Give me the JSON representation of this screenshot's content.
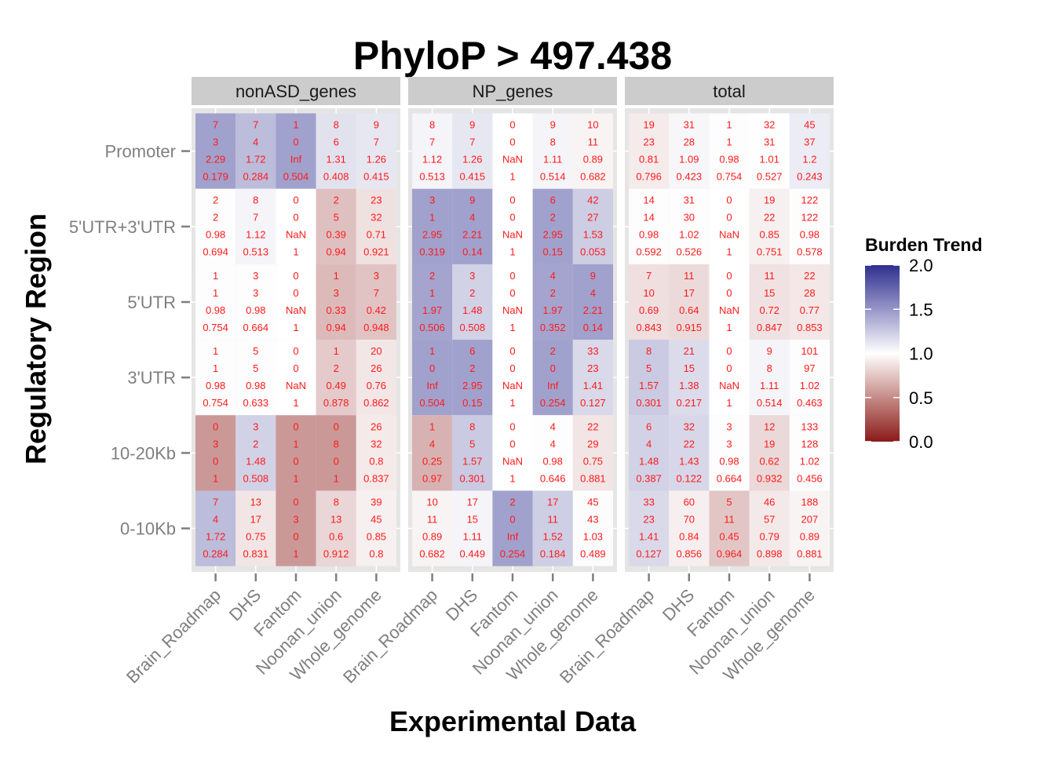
{
  "chart_data": {
    "type": "heatmap",
    "title": "PhyloP > 497.438",
    "xlabel": "Experimental Data",
    "ylabel": "Regulatory Region",
    "x_categories": [
      "Brain_Roadmap",
      "DHS",
      "Fantom",
      "Noonan_union",
      "Whole_genome"
    ],
    "y_categories": [
      "Promoter",
      "5'UTR+3'UTR",
      "5'UTR",
      "3'UTR",
      "10-20Kb",
      "0-10Kb"
    ],
    "legend": {
      "title": "Burden Trend",
      "ticks": [
        "2.0",
        "1.5",
        "1.0",
        "0.5",
        "0.0"
      ],
      "range": [
        0,
        2
      ],
      "colors": {
        "low": "#8b1a1a",
        "mid": "#ffffff",
        "high": "#2f2f8f"
      },
      "position": "right"
    },
    "facets": [
      {
        "name": "nonASD_genes",
        "rows": [
          [
            [
              "7",
              "3",
              "2.29",
              "0.179"
            ],
            [
              "7",
              "4",
              "1.72",
              "0.284"
            ],
            [
              "1",
              "0",
              "Inf",
              "0.504"
            ],
            [
              "8",
              "6",
              "1.31",
              "0.408"
            ],
            [
              "9",
              "7",
              "1.26",
              "0.415"
            ]
          ],
          [
            [
              "2",
              "2",
              "0.98",
              "0.694"
            ],
            [
              "8",
              "7",
              "1.12",
              "0.513"
            ],
            [
              "0",
              "0",
              "NaN",
              "1"
            ],
            [
              "2",
              "5",
              "0.39",
              "0.94"
            ],
            [
              "23",
              "32",
              "0.71",
              "0.921"
            ]
          ],
          [
            [
              "1",
              "1",
              "0.98",
              "0.754"
            ],
            [
              "3",
              "3",
              "0.98",
              "0.664"
            ],
            [
              "0",
              "0",
              "NaN",
              "1"
            ],
            [
              "1",
              "3",
              "0.33",
              "0.94"
            ],
            [
              "3",
              "7",
              "0.42",
              "0.948"
            ]
          ],
          [
            [
              "1",
              "1",
              "0.98",
              "0.754"
            ],
            [
              "5",
              "5",
              "0.98",
              "0.633"
            ],
            [
              "0",
              "0",
              "NaN",
              "1"
            ],
            [
              "1",
              "2",
              "0.49",
              "0.878"
            ],
            [
              "20",
              "26",
              "0.76",
              "0.862"
            ]
          ],
          [
            [
              "0",
              "3",
              "0",
              "1"
            ],
            [
              "3",
              "2",
              "1.48",
              "0.508"
            ],
            [
              "0",
              "1",
              "0",
              "1"
            ],
            [
              "0",
              "8",
              "0",
              "1"
            ],
            [
              "26",
              "32",
              "0.8",
              "0.837"
            ]
          ],
          [
            [
              "7",
              "4",
              "1.72",
              "0.284"
            ],
            [
              "13",
              "17",
              "0.75",
              "0.831"
            ],
            [
              "0",
              "3",
              "0",
              "1"
            ],
            [
              "8",
              "13",
              "0.6",
              "0.912"
            ],
            [
              "39",
              "45",
              "0.85",
              "0.8"
            ]
          ]
        ]
      },
      {
        "name": "NP_genes",
        "rows": [
          [
            [
              "8",
              "7",
              "1.12",
              "0.513"
            ],
            [
              "9",
              "7",
              "1.26",
              "0.415"
            ],
            [
              "0",
              "0",
              "NaN",
              "1"
            ],
            [
              "9",
              "8",
              "1.11",
              "0.514"
            ],
            [
              "10",
              "11",
              "0.89",
              "0.682"
            ]
          ],
          [
            [
              "3",
              "1",
              "2.95",
              "0.319"
            ],
            [
              "9",
              "4",
              "2.21",
              "0.14"
            ],
            [
              "0",
              "0",
              "NaN",
              "1"
            ],
            [
              "6",
              "2",
              "2.95",
              "0.15"
            ],
            [
              "42",
              "27",
              "1.53",
              "0.053"
            ]
          ],
          [
            [
              "2",
              "1",
              "1.97",
              "0.506"
            ],
            [
              "3",
              "2",
              "1.48",
              "0.508"
            ],
            [
              "0",
              "0",
              "NaN",
              "1"
            ],
            [
              "4",
              "2",
              "1.97",
              "0.352"
            ],
            [
              "9",
              "4",
              "2.21",
              "0.14"
            ]
          ],
          [
            [
              "1",
              "0",
              "Inf",
              "0.504"
            ],
            [
              "6",
              "2",
              "2.95",
              "0.15"
            ],
            [
              "0",
              "0",
              "NaN",
              "1"
            ],
            [
              "2",
              "0",
              "Inf",
              "0.254"
            ],
            [
              "33",
              "23",
              "1.41",
              "0.127"
            ]
          ],
          [
            [
              "1",
              "4",
              "0.25",
              "0.97"
            ],
            [
              "8",
              "5",
              "1.57",
              "0.301"
            ],
            [
              "0",
              "0",
              "NaN",
              "1"
            ],
            [
              "4",
              "4",
              "0.98",
              "0.646"
            ],
            [
              "22",
              "29",
              "0.75",
              "0.881"
            ]
          ],
          [
            [
              "10",
              "11",
              "0.89",
              "0.682"
            ],
            [
              "17",
              "15",
              "1.11",
              "0.449"
            ],
            [
              "2",
              "0",
              "Inf",
              "0.254"
            ],
            [
              "17",
              "11",
              "1.52",
              "0.184"
            ],
            [
              "45",
              "43",
              "1.03",
              "0.489"
            ]
          ]
        ]
      },
      {
        "name": "total",
        "rows": [
          [
            [
              "19",
              "23",
              "0.81",
              "0.796"
            ],
            [
              "31",
              "28",
              "1.09",
              "0.423"
            ],
            [
              "1",
              "1",
              "0.98",
              "0.754"
            ],
            [
              "32",
              "31",
              "1.01",
              "0.527"
            ],
            [
              "45",
              "37",
              "1.2",
              "0.243"
            ]
          ],
          [
            [
              "14",
              "14",
              "0.98",
              "0.592"
            ],
            [
              "31",
              "30",
              "1.02",
              "0.526"
            ],
            [
              "0",
              "0",
              "NaN",
              "1"
            ],
            [
              "19",
              "22",
              "0.85",
              "0.751"
            ],
            [
              "122",
              "122",
              "0.98",
              "0.578"
            ]
          ],
          [
            [
              "7",
              "10",
              "0.69",
              "0.843"
            ],
            [
              "11",
              "17",
              "0.64",
              "0.915"
            ],
            [
              "0",
              "0",
              "NaN",
              "1"
            ],
            [
              "11",
              "15",
              "0.72",
              "0.847"
            ],
            [
              "22",
              "28",
              "0.77",
              "0.853"
            ]
          ],
          [
            [
              "8",
              "5",
              "1.57",
              "0.301"
            ],
            [
              "21",
              "15",
              "1.38",
              "0.217"
            ],
            [
              "0",
              "0",
              "NaN",
              "1"
            ],
            [
              "9",
              "8",
              "1.11",
              "0.514"
            ],
            [
              "101",
              "97",
              "1.02",
              "0.463"
            ]
          ],
          [
            [
              "6",
              "4",
              "1.48",
              "0.387"
            ],
            [
              "32",
              "22",
              "1.43",
              "0.122"
            ],
            [
              "3",
              "3",
              "0.98",
              "0.664"
            ],
            [
              "12",
              "19",
              "0.62",
              "0.932"
            ],
            [
              "133",
              "128",
              "1.02",
              "0.456"
            ]
          ],
          [
            [
              "33",
              "23",
              "1.41",
              "0.127"
            ],
            [
              "60",
              "70",
              "0.84",
              "0.856"
            ],
            [
              "5",
              "11",
              "0.45",
              "0.964"
            ],
            [
              "46",
              "57",
              "0.79",
              "0.898"
            ],
            [
              "188",
              "207",
              "0.89",
              "0.881"
            ]
          ]
        ]
      }
    ]
  }
}
